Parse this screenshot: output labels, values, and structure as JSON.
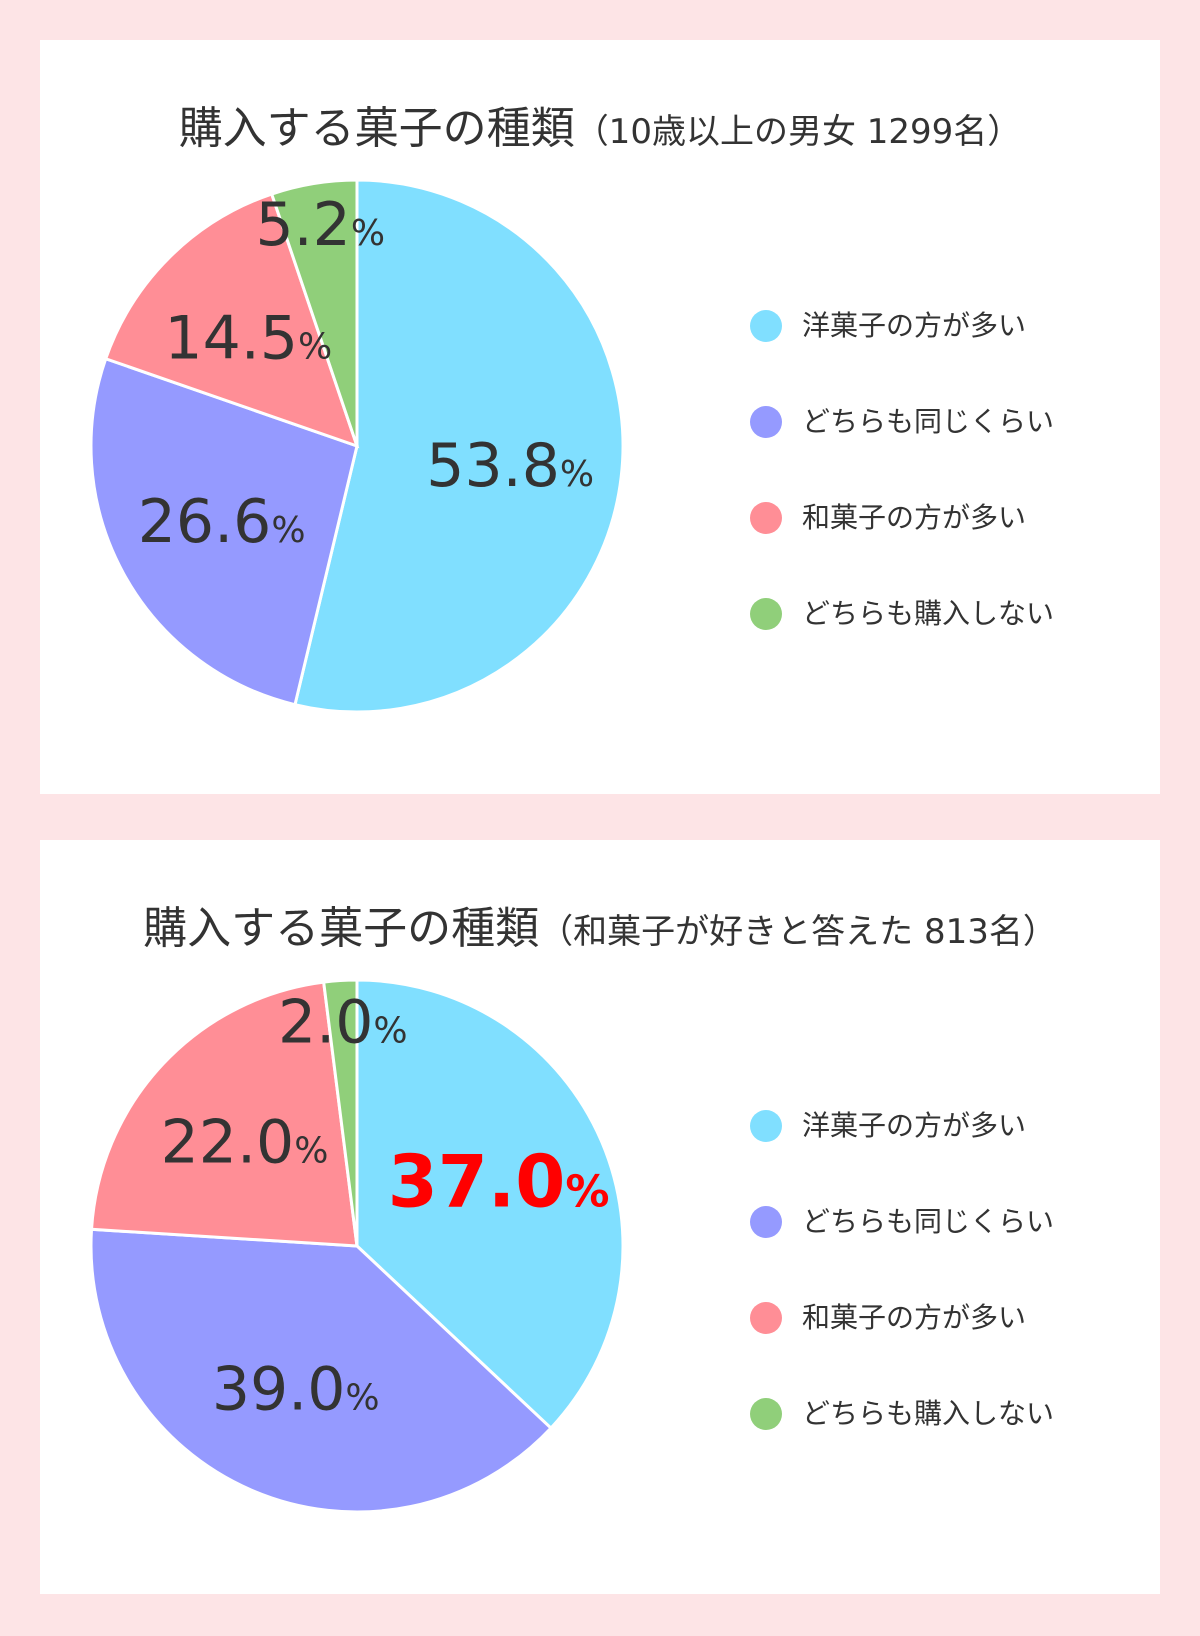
{
  "colors": {
    "background": "#fde4e6",
    "panel": "#ffffff",
    "text": "#333333",
    "highlight": "#ff0000",
    "series": [
      "#80dfff",
      "#959aff",
      "#ff8e96",
      "#90cf7a"
    ]
  },
  "chart_data": [
    {
      "type": "pie",
      "title": "購入する菓子の種類",
      "subtitle": "（10歳以上の男女 1299名）",
      "categories": [
        "洋菓子の方が多い",
        "どちらも同じくらい",
        "和菓子の方が多い",
        "どちらも購入しない"
      ],
      "values": [
        53.8,
        26.6,
        14.5,
        5.2
      ],
      "labels": [
        "53.8",
        "26.6",
        "14.5",
        "5.2"
      ],
      "unit": "%",
      "highlight_index": null,
      "legend": "right"
    },
    {
      "type": "pie",
      "title": "購入する菓子の種類",
      "subtitle": "（和菓子が好きと答えた 813名）",
      "categories": [
        "洋菓子の方が多い",
        "どちらも同じくらい",
        "和菓子の方が多い",
        "どちらも購入しない"
      ],
      "values": [
        37.0,
        39.0,
        22.0,
        2.0
      ],
      "labels": [
        "37.0",
        "39.0",
        "22.0",
        "2.0"
      ],
      "unit": "%",
      "highlight_index": 0,
      "legend": "right"
    }
  ]
}
